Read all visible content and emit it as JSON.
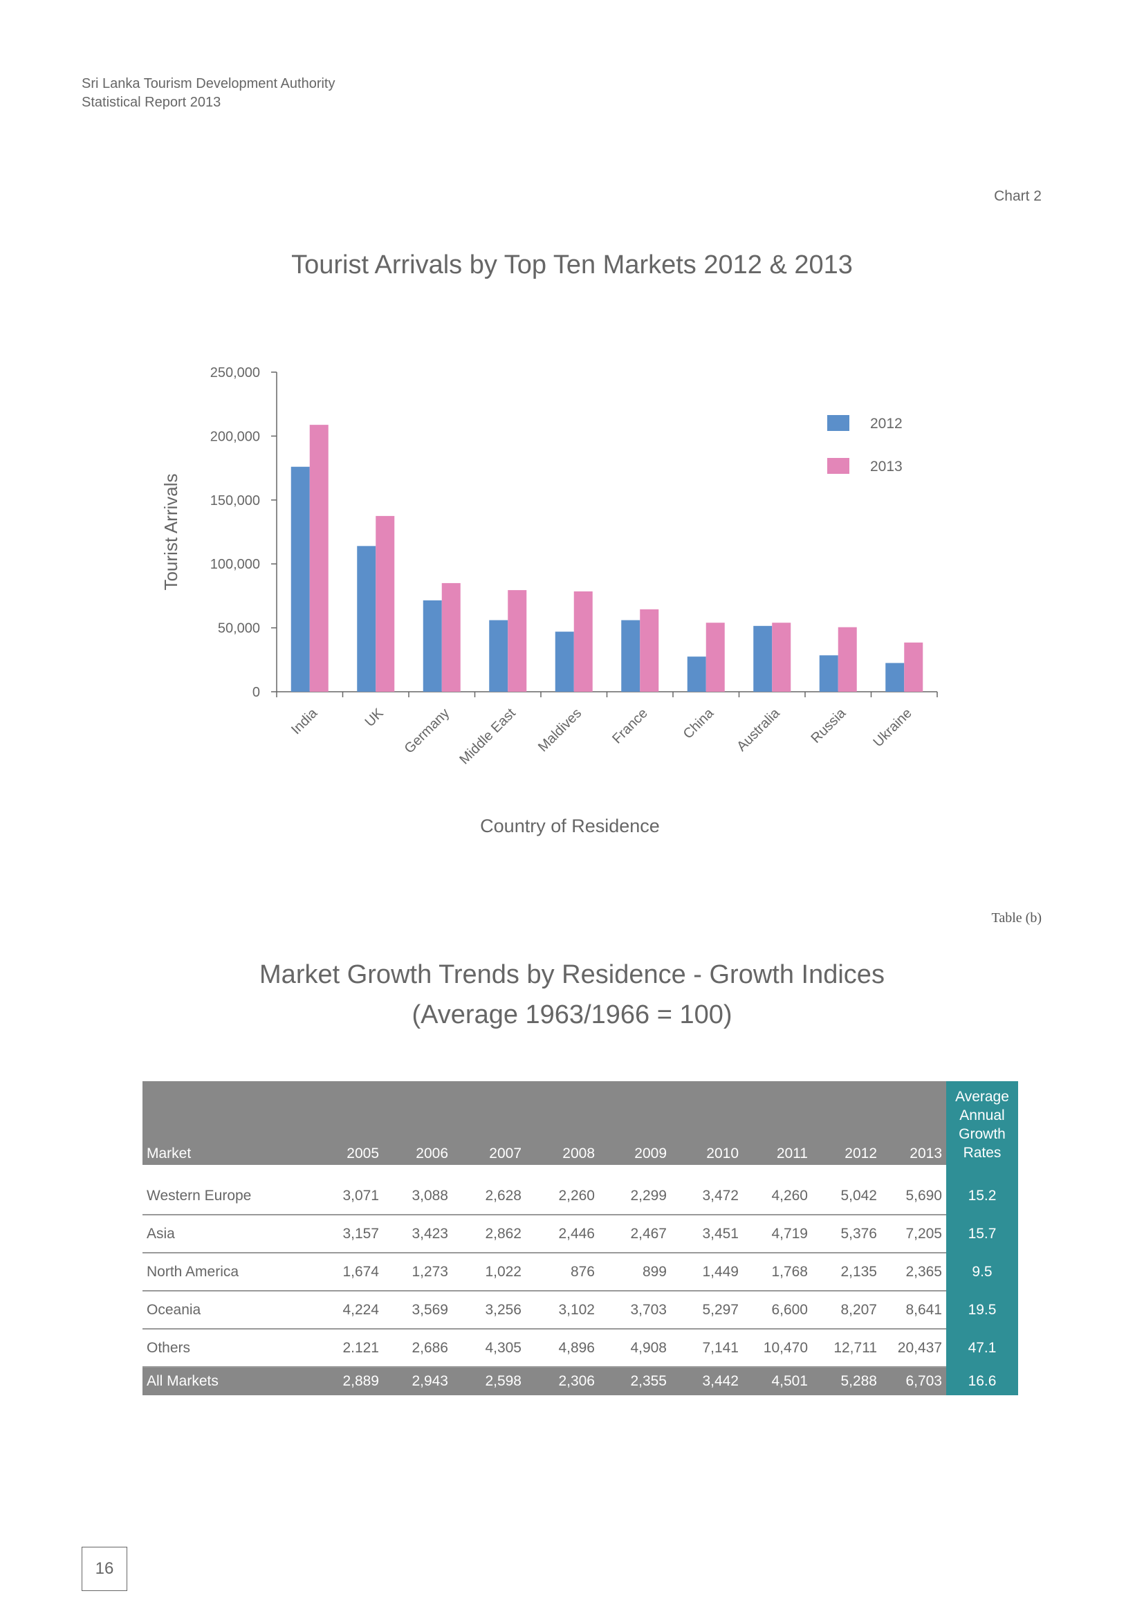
{
  "header": {
    "line1": "Sri Lanka Tourism Development Authority",
    "line2": "Statistical Report 2013"
  },
  "chart_label": "Chart 2",
  "chart_data": {
    "type": "bar",
    "title": "Tourist Arrivals by Top Ten Markets 2012 & 2013",
    "xlabel": "Country of Residence",
    "ylabel": "Tourist Arrivals",
    "ylim": [
      0,
      250000
    ],
    "yticks": [
      0,
      50000,
      100000,
      150000,
      200000,
      250000
    ],
    "ytick_labels": [
      "0",
      "50,000",
      "100,000",
      "150,000",
      "200,000",
      "250,000"
    ],
    "categories": [
      "India",
      "UK",
      "Germany",
      "Middle East",
      "Maldives",
      "France",
      "China",
      "Australia",
      "Russia",
      "Ukraine"
    ],
    "series": [
      {
        "name": "2012",
        "color": "#5b8fca",
        "values": [
          176000,
          114000,
          71500,
          56000,
          47000,
          56000,
          27500,
          51500,
          28500,
          22500
        ]
      },
      {
        "name": "2013",
        "color": "#e386b8",
        "values": [
          208800,
          137500,
          85000,
          79500,
          78500,
          64500,
          54000,
          54000,
          50500,
          38500
        ]
      }
    ],
    "legend_position": "top-right",
    "grid": false
  },
  "table": {
    "label": "Table (b)",
    "title_line1": "Market Growth Trends by Residence - Growth Indices",
    "title_line2": "(Average 1963/1966 = 100)",
    "headers": [
      "Market",
      "2005",
      "2006",
      "2007",
      "2008",
      "2009",
      "2010",
      "2011",
      "2012",
      "2013"
    ],
    "rate_header": [
      "Average",
      "Annual",
      "Growth",
      "Rates"
    ],
    "rows": [
      [
        "Western Europe",
        "3,071",
        "3,088",
        "2,628",
        "2,260",
        "2,299",
        "3,472",
        "4,260",
        "5,042",
        "5,690",
        "15.2"
      ],
      [
        "Asia",
        "3,157",
        "3,423",
        "2,862",
        "2,446",
        "2,467",
        "3,451",
        "4,719",
        "5,376",
        "7,205",
        "15.7"
      ],
      [
        "North America",
        "1,674",
        "1,273",
        "1,022",
        "876",
        "899",
        "1,449",
        "1,768",
        "2,135",
        "2,365",
        "9.5"
      ],
      [
        "Oceania",
        "4,224",
        "3,569",
        "3,256",
        "3,102",
        "3,703",
        "5,297",
        "6,600",
        "8,207",
        "8,641",
        "19.5"
      ],
      [
        "Others",
        "2.121",
        "2,686",
        "4,305",
        "4,896",
        "4,908",
        "7,141",
        "10,470",
        "12,711",
        "20,437",
        "47.1"
      ]
    ],
    "total": [
      "All Markets",
      "2,889",
      "2,943",
      "2,598",
      "2,306",
      "2,355",
      "3,442",
      "4,501",
      "5,288",
      "6,703",
      "16.6"
    ]
  },
  "page_number": "16"
}
